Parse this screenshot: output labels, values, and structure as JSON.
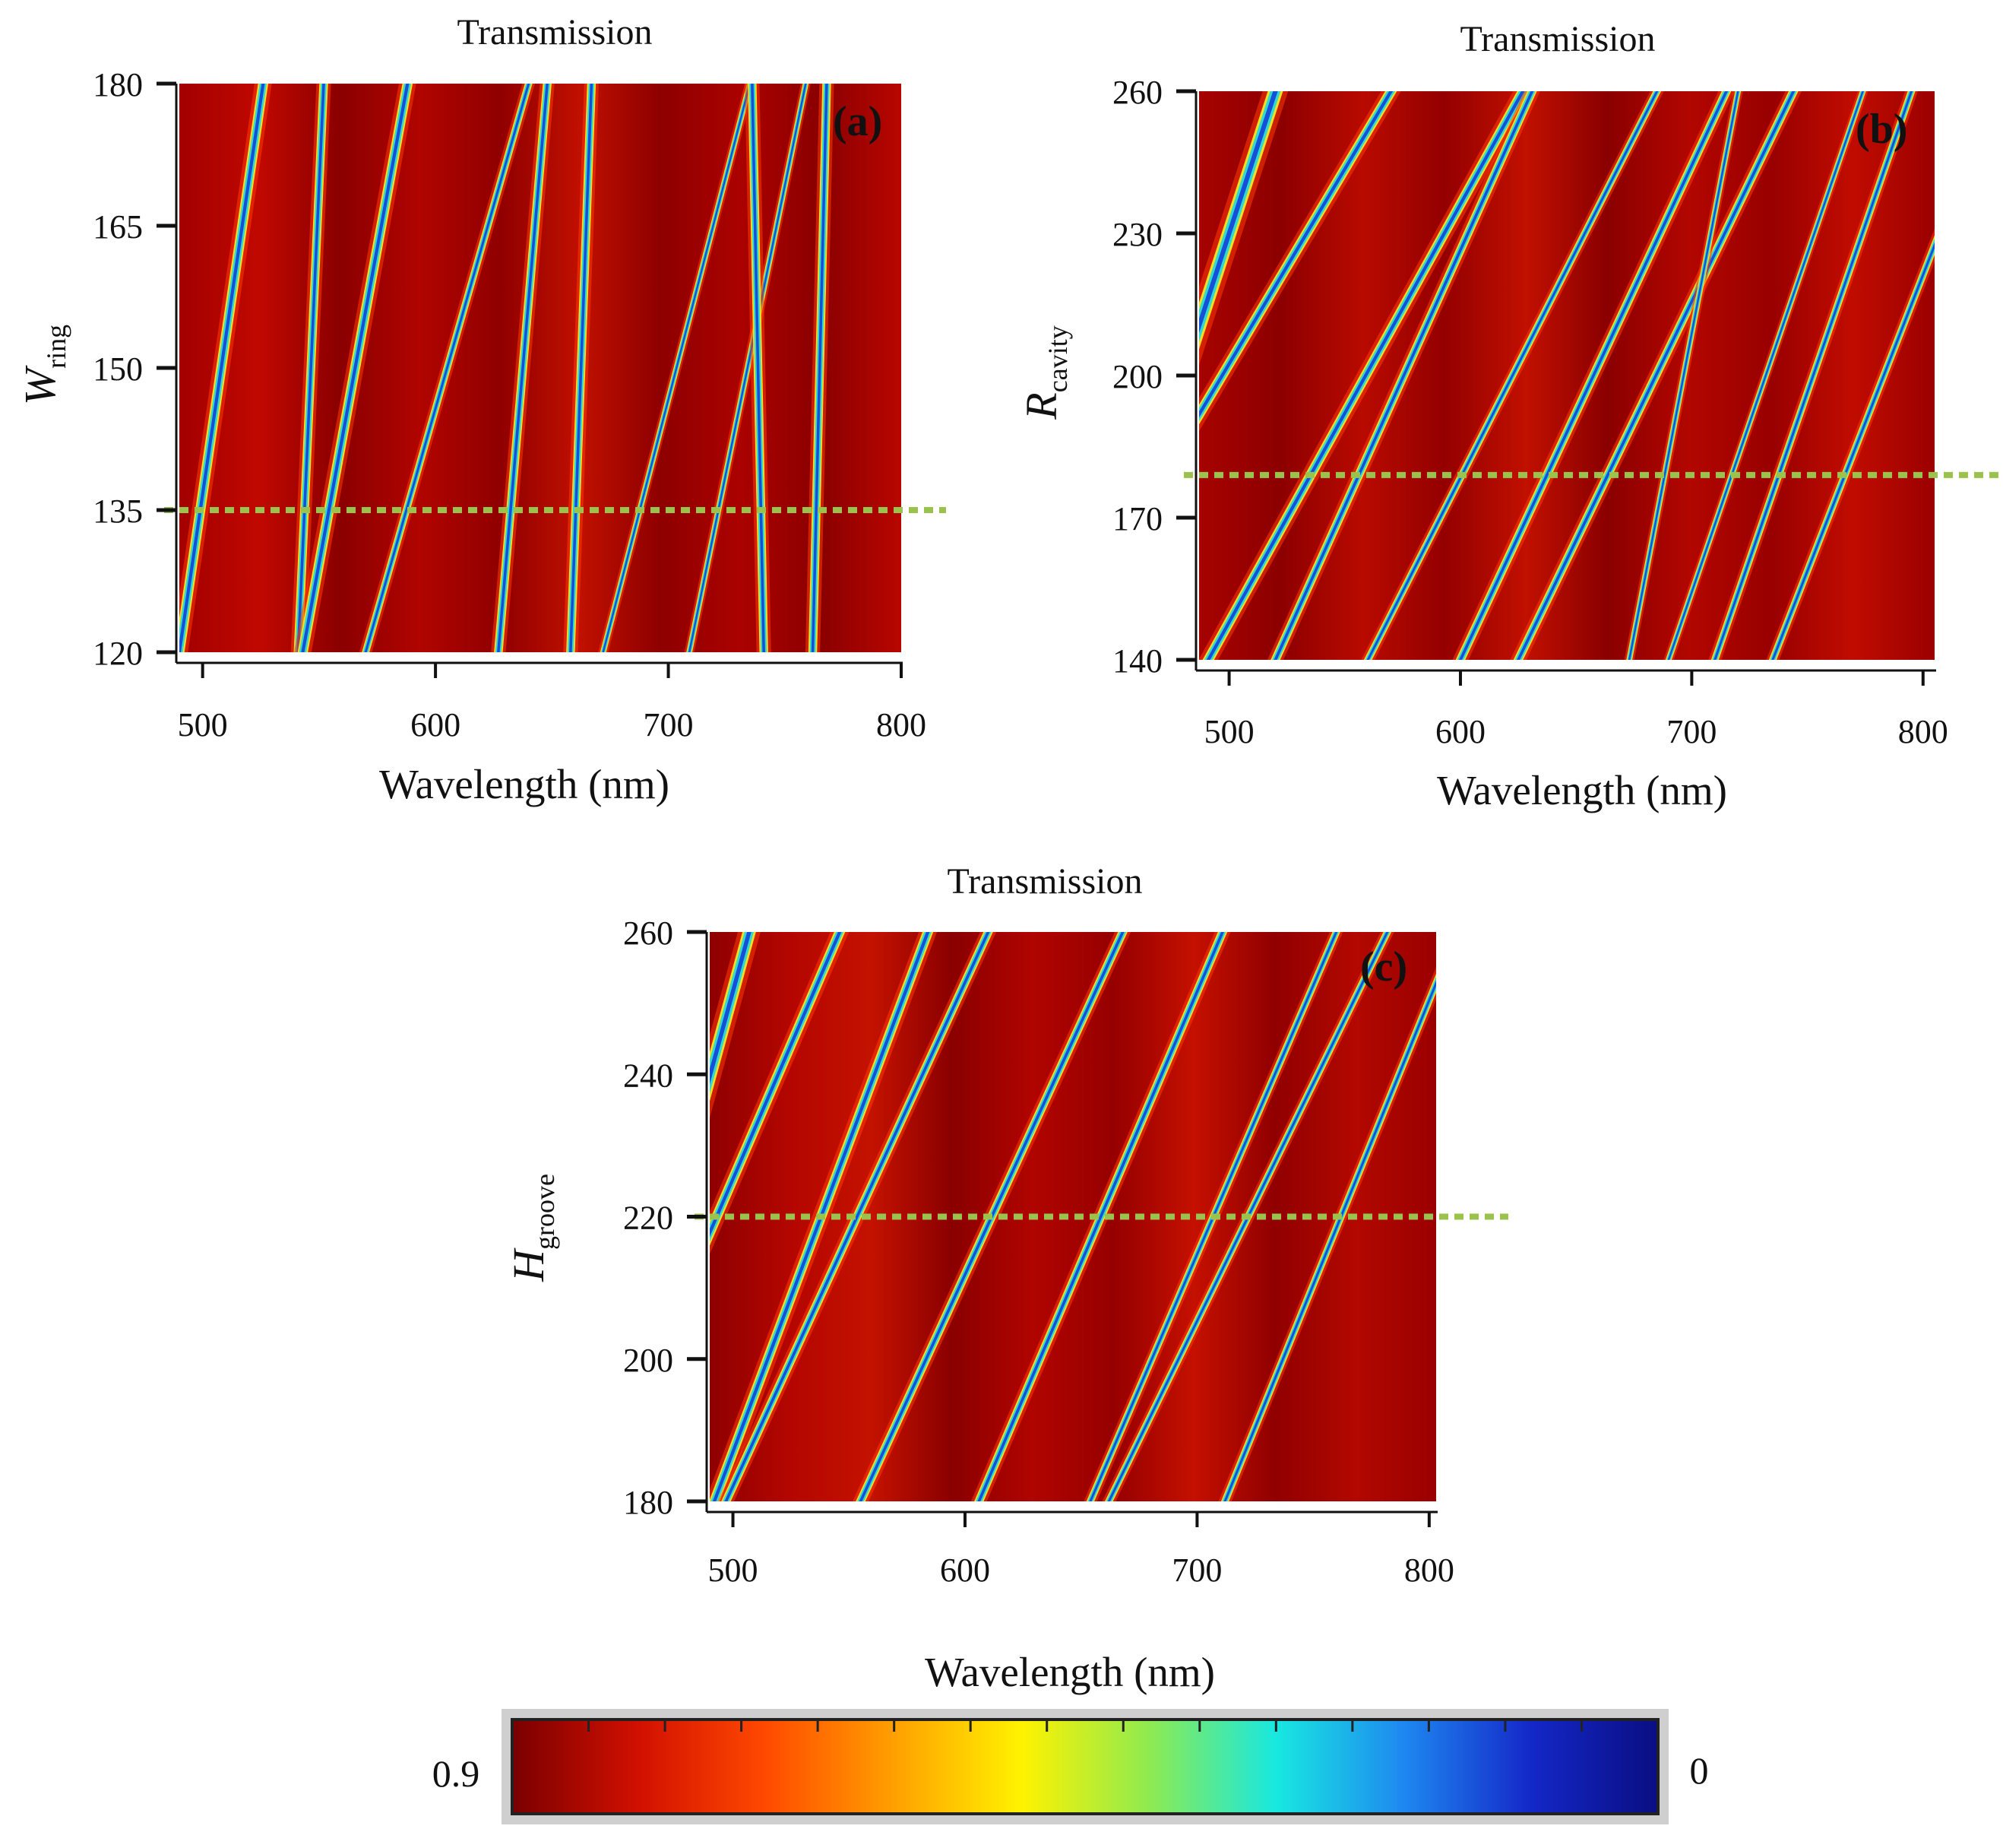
{
  "figure": {
    "colorbar_xlabel": "Wavelength (nm)"
  },
  "chart_data": [
    {
      "type": "heatmap",
      "panel": "(a)",
      "title": "Transmission",
      "xlabel": "Wavelength (nm)",
      "ylabel_main": "W",
      "ylabel_sub": "ring",
      "xlim": [
        490,
        800
      ],
      "ylim": [
        120,
        180
      ],
      "xticks": [
        500,
        600,
        700,
        800
      ],
      "yticks": [
        120,
        135,
        150,
        165,
        180
      ],
      "reference_line": 135,
      "resonance_lines": [
        {
          "x_bottom": 490,
          "x_top": 526,
          "width": 7
        },
        {
          "x_bottom": 541,
          "x_top": 552,
          "width": 6
        },
        {
          "x_bottom": 543,
          "x_top": 588,
          "width": 7
        },
        {
          "x_bottom": 570,
          "x_top": 640,
          "width": 5
        },
        {
          "x_bottom": 627,
          "x_top": 648,
          "width": 6
        },
        {
          "x_bottom": 658,
          "x_top": 667,
          "width": 6
        },
        {
          "x_bottom": 672,
          "x_top": 735,
          "width": 4
        },
        {
          "x_bottom": 709,
          "x_top": 759,
          "width": 4
        },
        {
          "x_bottom": 741,
          "x_top": 736,
          "width": 6
        },
        {
          "x_bottom": 762,
          "x_top": 768,
          "width": 6
        }
      ]
    },
    {
      "type": "heatmap",
      "panel": "(b)",
      "title": "Transmission",
      "xlabel": "Wavelength (nm)",
      "ylabel_main": "R",
      "ylabel_sub": "cavity",
      "xlim": [
        487,
        805
      ],
      "ylim": [
        140,
        260
      ],
      "xticks": [
        500,
        600,
        700,
        800
      ],
      "yticks": [
        140,
        170,
        200,
        230,
        260
      ],
      "reference_line": 179,
      "resonance_lines": [
        {
          "x_bottom": 440,
          "x_top": 520,
          "width": 10
        },
        {
          "x_bottom": 424,
          "x_top": 570,
          "width": 7
        },
        {
          "x_bottom": 491,
          "x_top": 627,
          "width": 7
        },
        {
          "x_bottom": 520,
          "x_top": 631,
          "width": 6
        },
        {
          "x_bottom": 560,
          "x_top": 685,
          "width": 5
        },
        {
          "x_bottom": 600,
          "x_top": 715,
          "width": 6
        },
        {
          "x_bottom": 625,
          "x_top": 744,
          "width": 6
        },
        {
          "x_bottom": 673,
          "x_top": 720,
          "width": 4
        },
        {
          "x_bottom": 690,
          "x_top": 774,
          "width": 4
        },
        {
          "x_bottom": 710,
          "x_top": 795,
          "width": 5
        },
        {
          "x_bottom": 735,
          "x_top": 831,
          "width": 5
        }
      ]
    },
    {
      "type": "heatmap",
      "panel": "(c)",
      "title": "Transmission",
      "xlabel": "Wavelength (nm)",
      "ylabel_main": "H",
      "ylabel_sub": "groove",
      "xlim": [
        490,
        803
      ],
      "ylim": [
        180,
        260
      ],
      "xticks": [
        500,
        600,
        700,
        800
      ],
      "yticks": [
        180,
        200,
        220,
        240,
        260
      ],
      "reference_line": 220,
      "resonance_lines": [
        {
          "x_bottom": 440,
          "x_top": 507,
          "width": 9
        },
        {
          "x_bottom": 440,
          "x_top": 546,
          "width": 7
        },
        {
          "x_bottom": 492,
          "x_top": 584,
          "width": 7
        },
        {
          "x_bottom": 497,
          "x_top": 610,
          "width": 6
        },
        {
          "x_bottom": 555,
          "x_top": 668,
          "width": 6
        },
        {
          "x_bottom": 606,
          "x_top": 711,
          "width": 6
        },
        {
          "x_bottom": 654,
          "x_top": 760,
          "width": 5
        },
        {
          "x_bottom": 662,
          "x_top": 782,
          "width": 5
        },
        {
          "x_bottom": 712,
          "x_top": 812,
          "width": 5
        }
      ]
    },
    {
      "type": "colorbar",
      "min_label": "0.9",
      "max_label": "0",
      "colors": [
        "#7a0000",
        "#d21000",
        "#ff4a00",
        "#ffa000",
        "#fff200",
        "#8fea50",
        "#18e8e0",
        "#1e88f0",
        "#1428c8",
        "#0a0e82"
      ]
    }
  ]
}
